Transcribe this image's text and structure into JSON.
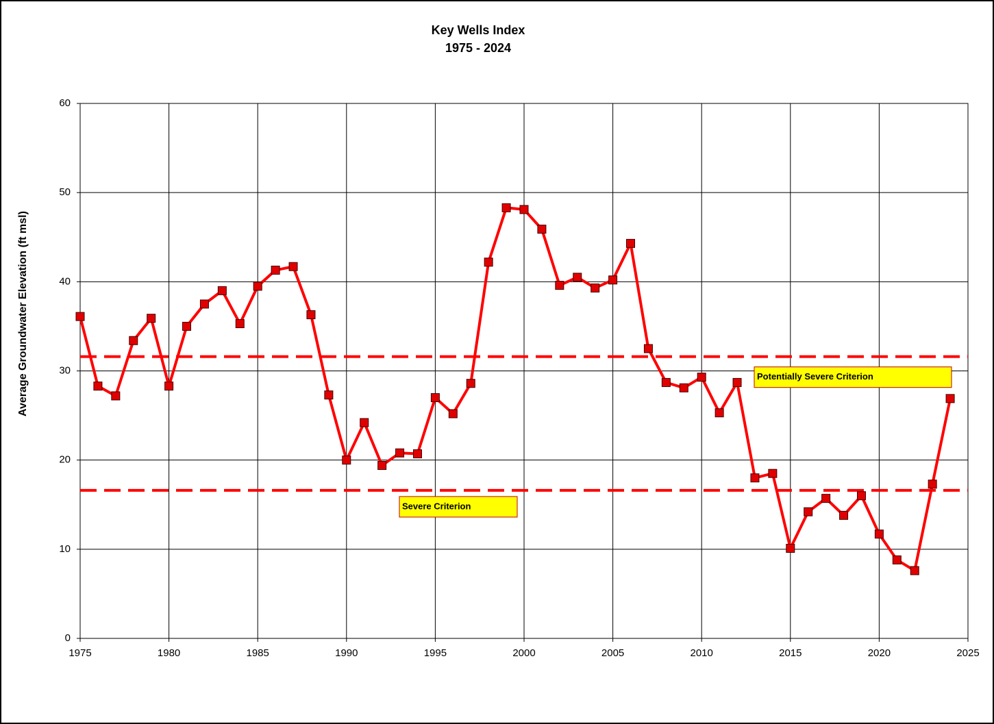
{
  "chart_data": {
    "type": "line",
    "title": "Key Wells Index",
    "subtitle": "1975 - 2024",
    "y_label": "Average Groundwater Elevation (ft msl)",
    "x": [
      1975,
      1976,
      1977,
      1978,
      1979,
      1980,
      1981,
      1982,
      1983,
      1984,
      1985,
      1986,
      1987,
      1988,
      1989,
      1990,
      1991,
      1992,
      1993,
      1994,
      1995,
      1996,
      1997,
      1998,
      1999,
      2000,
      2001,
      2002,
      2003,
      2004,
      2005,
      2006,
      2007,
      2008,
      2009,
      2010,
      2011,
      2012,
      2013,
      2014,
      2015,
      2016,
      2017,
      2018,
      2019,
      2020,
      2021,
      2022,
      2023,
      2024
    ],
    "series": [
      {
        "color": "#ff0000",
        "marker_color": "#e00000",
        "values": [
          36.1,
          28.3,
          27.2,
          33.4,
          35.9,
          28.3,
          35.0,
          37.5,
          39.0,
          35.3,
          39.5,
          41.3,
          41.7,
          36.3,
          27.3,
          20.0,
          24.2,
          19.4,
          20.8,
          20.7,
          27.0,
          25.2,
          28.6,
          42.2,
          48.3,
          48.1,
          45.9,
          39.6,
          40.5,
          39.3,
          40.2,
          44.3,
          32.5,
          28.7,
          28.1,
          29.3,
          25.3,
          28.7,
          18.0,
          18.5,
          10.1,
          14.2,
          15.7,
          13.8,
          16.0,
          11.7,
          8.8,
          7.6,
          17.3,
          26.9
        ]
      }
    ],
    "reference_lines": [
      {
        "value": 31.6,
        "label": "Potentially Severe Criterion",
        "color": "#ff0000"
      },
      {
        "value": 16.6,
        "label": "Severe Criterion",
        "color": "#ff0000"
      }
    ],
    "xlim": [
      1975,
      2025
    ],
    "xticks": [
      1975,
      1980,
      1985,
      1990,
      1995,
      2000,
      2005,
      2010,
      2015,
      2020,
      2025
    ],
    "ylim": [
      0,
      60
    ],
    "yticks": [
      0,
      10,
      20,
      30,
      40,
      50,
      60
    ],
    "grid": true
  }
}
